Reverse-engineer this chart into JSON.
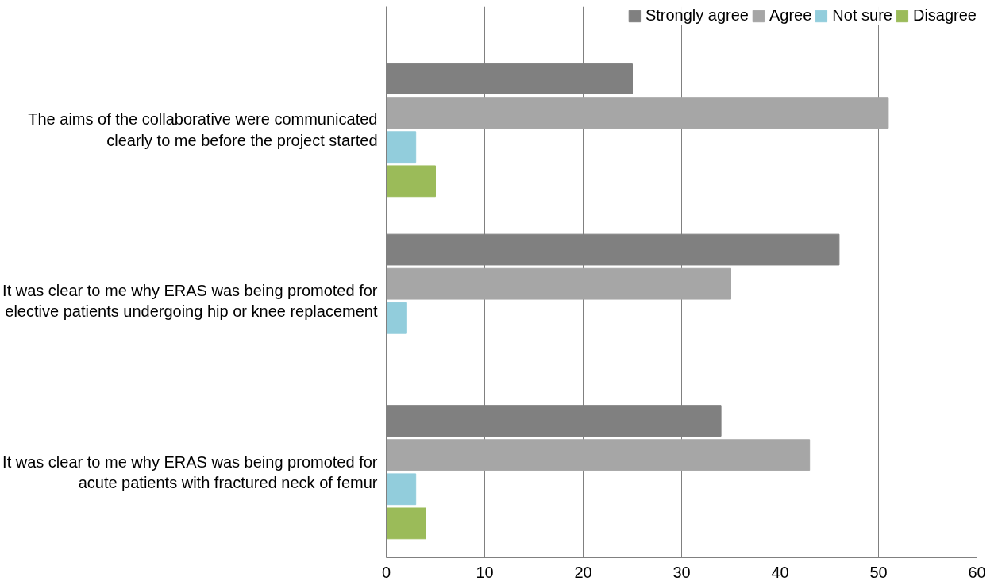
{
  "chart_data": {
    "type": "bar",
    "orientation": "horizontal",
    "categories": [
      "The aims of the collaborative were communicated\nclearly to me before the project started",
      "It was clear to me why ERAS was being promoted for\nelective patients undergoing hip or knee replacement",
      "It was clear to me why ERAS was being promoted for\nacute patients with fractured neck of femur"
    ],
    "series": [
      {
        "name": "Strongly agree",
        "color": "#808080",
        "values": [
          25,
          46,
          34
        ]
      },
      {
        "name": "Agree",
        "color": "#a6a6a6",
        "values": [
          51,
          35,
          43
        ]
      },
      {
        "name": "Not sure",
        "color": "#92cddc",
        "values": [
          3,
          2,
          3
        ]
      },
      {
        "name": "Disagree",
        "color": "#9bbb59",
        "values": [
          5,
          null,
          4
        ]
      }
    ],
    "xlim": [
      0,
      60
    ],
    "xticks": [
      0,
      10,
      20,
      30,
      40,
      50,
      60
    ],
    "grid": "x",
    "legend": "top"
  }
}
